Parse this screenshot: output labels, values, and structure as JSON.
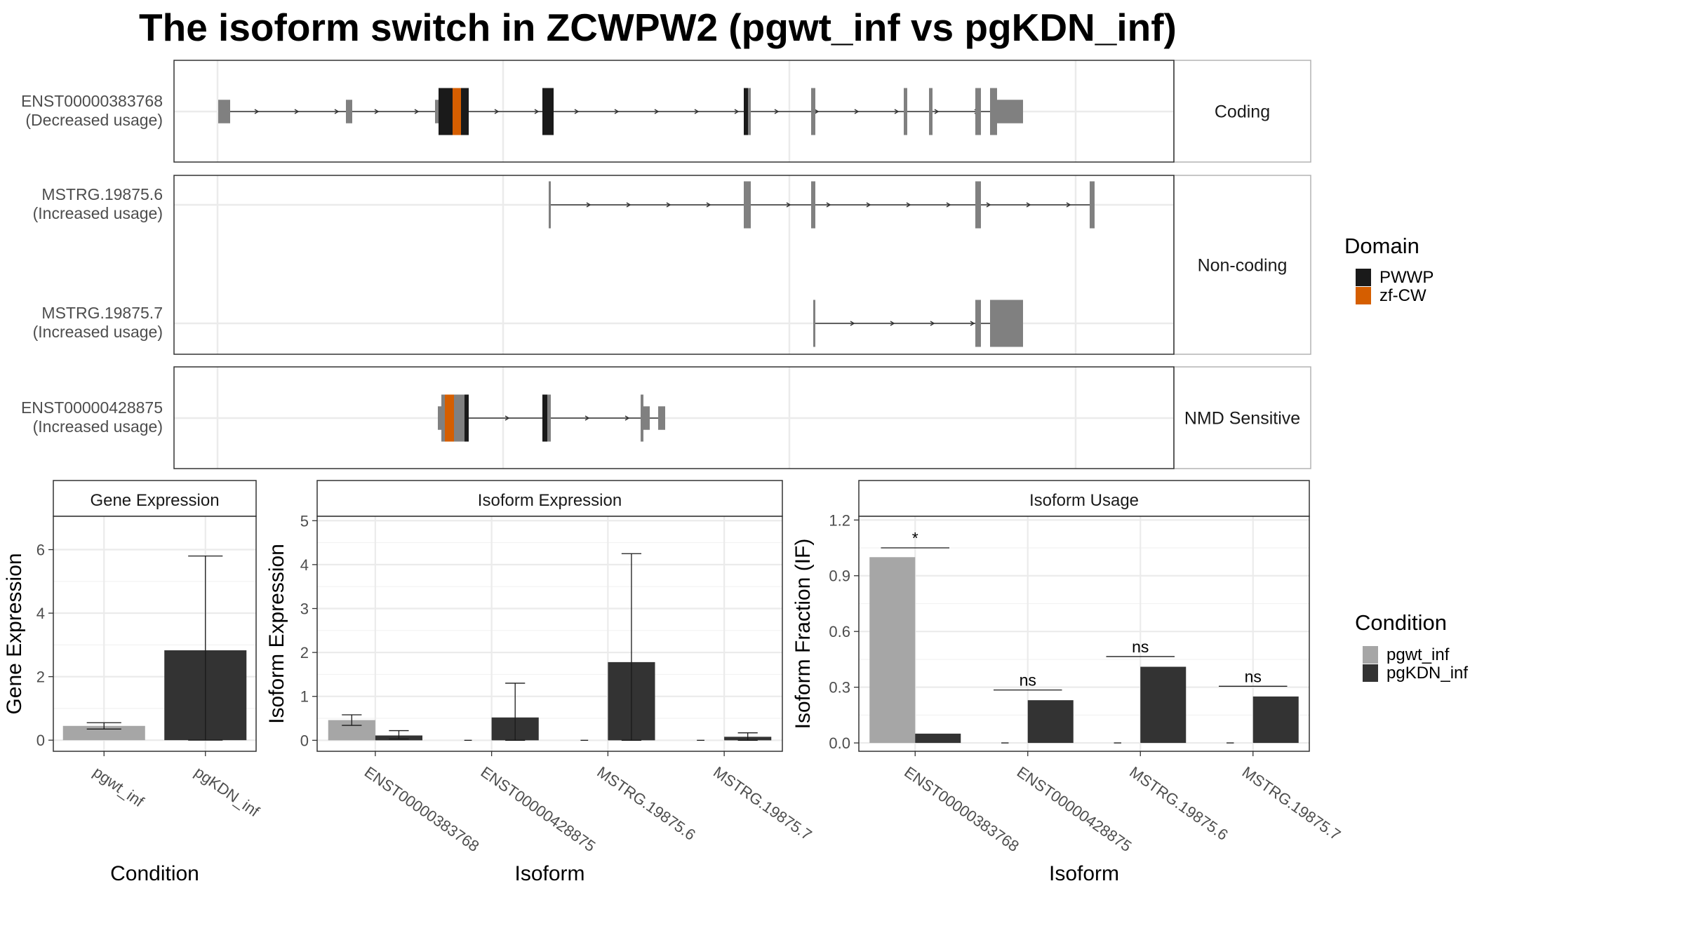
{
  "title": "The isoform switch in ZCWPW2 (pgwt_inf vs pgKDN_inf)",
  "colors": {
    "exon": "#808080",
    "pwwp": "#1a1a1a",
    "zfcw": "#d55e00",
    "pgwt_inf": "#a6a6a6",
    "pgKDN_inf": "#333333",
    "grid": "#ebebeb",
    "panel_border": "#333333",
    "strip_border": "#b3b3b3"
  },
  "transcript_panel": {
    "facets": [
      {
        "label": "Coding",
        "tracks": 1
      },
      {
        "label": "Non-coding",
        "tracks": 2
      },
      {
        "label": "NMD Sensitive",
        "tracks": 1
      }
    ],
    "transcripts": [
      {
        "facet": 0,
        "row": 0,
        "id": "ENST00000383768",
        "status": "(Decreased usage)",
        "intron": [
          63,
          1210
        ],
        "exons": [
          {
            "s": 63,
            "e": 80,
            "h": 0.5
          },
          {
            "s": 245,
            "e": 254,
            "h": 0.5
          },
          {
            "s": 372,
            "e": 377,
            "h": 0.5
          },
          {
            "s": 377,
            "e": 397,
            "h": 1,
            "d": "pwwp"
          },
          {
            "s": 397,
            "e": 409,
            "h": 1,
            "d": "zfcw"
          },
          {
            "s": 409,
            "e": 414,
            "h": 1,
            "d": "pwwp"
          },
          {
            "s": 414,
            "e": 420,
            "h": 1,
            "d": "pwwp"
          },
          {
            "s": 525,
            "e": 541,
            "h": 1,
            "d": "pwwp"
          },
          {
            "s": 812,
            "e": 818,
            "h": 1,
            "d": "pwwp"
          },
          {
            "s": 818,
            "e": 822,
            "h": 1
          },
          {
            "s": 908,
            "e": 914,
            "h": 1
          },
          {
            "s": 1040,
            "e": 1045,
            "h": 1
          },
          {
            "s": 1076,
            "e": 1081,
            "h": 1
          },
          {
            "s": 1142,
            "e": 1150,
            "h": 1
          },
          {
            "s": 1163,
            "e": 1173,
            "h": 1
          },
          {
            "s": 1173,
            "e": 1210,
            "h": 0.5
          }
        ]
      },
      {
        "facet": 1,
        "row": 0,
        "id": "MSTRG.19875.6",
        "status": "(Increased usage)",
        "intron": [
          536,
          1312
        ],
        "exons": [
          {
            "s": 534,
            "e": 537,
            "h": 1
          },
          {
            "s": 812,
            "e": 822,
            "h": 1
          },
          {
            "s": 908,
            "e": 914,
            "h": 1
          },
          {
            "s": 1142,
            "e": 1150,
            "h": 1
          },
          {
            "s": 1305,
            "e": 1312,
            "h": 1
          }
        ]
      },
      {
        "facet": 1,
        "row": 1,
        "id": "MSTRG.19875.7",
        "status": "(Increased usage)",
        "intron": [
          912,
          1210
        ],
        "exons": [
          {
            "s": 911,
            "e": 914,
            "h": 1
          },
          {
            "s": 1142,
            "e": 1150,
            "h": 1
          },
          {
            "s": 1163,
            "e": 1210,
            "h": 1
          }
        ]
      },
      {
        "facet": 2,
        "row": 0,
        "id": "ENST00000428875",
        "status": "(Increased usage)",
        "intron": [
          420,
          690
        ],
        "exons": [
          {
            "s": 376,
            "e": 381,
            "h": 0.5
          },
          {
            "s": 381,
            "e": 386,
            "h": 1
          },
          {
            "s": 386,
            "e": 399,
            "h": 1,
            "d": "zfcw"
          },
          {
            "s": 399,
            "e": 414,
            "h": 1
          },
          {
            "s": 414,
            "e": 420,
            "h": 1,
            "d": "pwwp"
          },
          {
            "s": 525,
            "e": 532,
            "h": 1,
            "d": "pwwp"
          },
          {
            "s": 532,
            "e": 537,
            "h": 1
          },
          {
            "s": 665,
            "e": 669,
            "h": 1
          },
          {
            "s": 669,
            "e": 678,
            "h": 0.5
          },
          {
            "s": 690,
            "e": 700,
            "h": 0.5
          }
        ]
      }
    ]
  },
  "domain_legend": {
    "title": "Domain",
    "items": [
      {
        "label": "PWWP",
        "color": "#1a1a1a"
      },
      {
        "label": "zf-CW",
        "color": "#d55e00"
      }
    ]
  },
  "condition_legend": {
    "title": "Condition",
    "items": [
      {
        "label": "pgwt_inf",
        "color": "#a6a6a6"
      },
      {
        "label": "pgKDN_inf",
        "color": "#333333"
      }
    ]
  },
  "chart_data": [
    {
      "type": "bar",
      "title": "Gene Expression",
      "xlabel": "Condition",
      "ylabel": "Gene Expression",
      "categories": [
        "pgwt_inf",
        "pgKDN_inf"
      ],
      "values": [
        0.45,
        2.83
      ],
      "errors": [
        [
          0.35,
          0.55
        ],
        [
          0.0,
          5.8
        ]
      ],
      "colors": [
        "#a6a6a6",
        "#333333"
      ],
      "ylim": [
        -0.35,
        7.05
      ],
      "yticks": [
        0,
        2,
        4,
        6
      ]
    },
    {
      "type": "bar",
      "title": "Isoform Expression",
      "xlabel": "Isoform",
      "ylabel": "Isoform Expression",
      "categories": [
        "ENST00000383768",
        "ENST00000428875",
        "MSTRG.19875.6",
        "MSTRG.19875.7"
      ],
      "series": [
        {
          "name": "pgwt_inf",
          "values": [
            0.46,
            0,
            0,
            0
          ],
          "errors": [
            [
              0.34,
              0.58
            ],
            null,
            null,
            null
          ]
        },
        {
          "name": "pgKDN_inf",
          "values": [
            0.11,
            0.52,
            1.78,
            0.08
          ],
          "errors": [
            [
              0.03,
              0.22
            ],
            [
              0.0,
              1.3
            ],
            [
              0.0,
              4.25
            ],
            [
              0.0,
              0.17
            ]
          ]
        }
      ],
      "ylim": [
        -0.25,
        5.1
      ],
      "yticks": [
        0,
        1,
        2,
        3,
        4,
        5
      ]
    },
    {
      "type": "bar",
      "title": "Isoform Usage",
      "xlabel": "Isoform",
      "ylabel": "Isoform Fraction (IF)",
      "categories": [
        "ENST00000383768",
        "ENST00000428875",
        "MSTRG.19875.6",
        "MSTRG.19875.7"
      ],
      "series": [
        {
          "name": "pgwt_inf",
          "values": [
            1.0,
            0,
            0,
            0
          ]
        },
        {
          "name": "pgKDN_inf",
          "values": [
            0.05,
            0.23,
            0.41,
            0.25
          ]
        }
      ],
      "significance": [
        {
          "label": "*",
          "y": 1.05
        },
        {
          "label": "ns",
          "y": 0.285
        },
        {
          "label": "ns",
          "y": 0.465
        },
        {
          "label": "ns",
          "y": 0.305
        }
      ],
      "ylim": [
        -0.045,
        1.22
      ],
      "yticks": [
        0.0,
        0.3,
        0.6,
        0.9,
        1.2
      ],
      "ytick_labels": [
        "0.0",
        "0.3",
        "0.6",
        "0.9",
        "1.2"
      ]
    }
  ]
}
